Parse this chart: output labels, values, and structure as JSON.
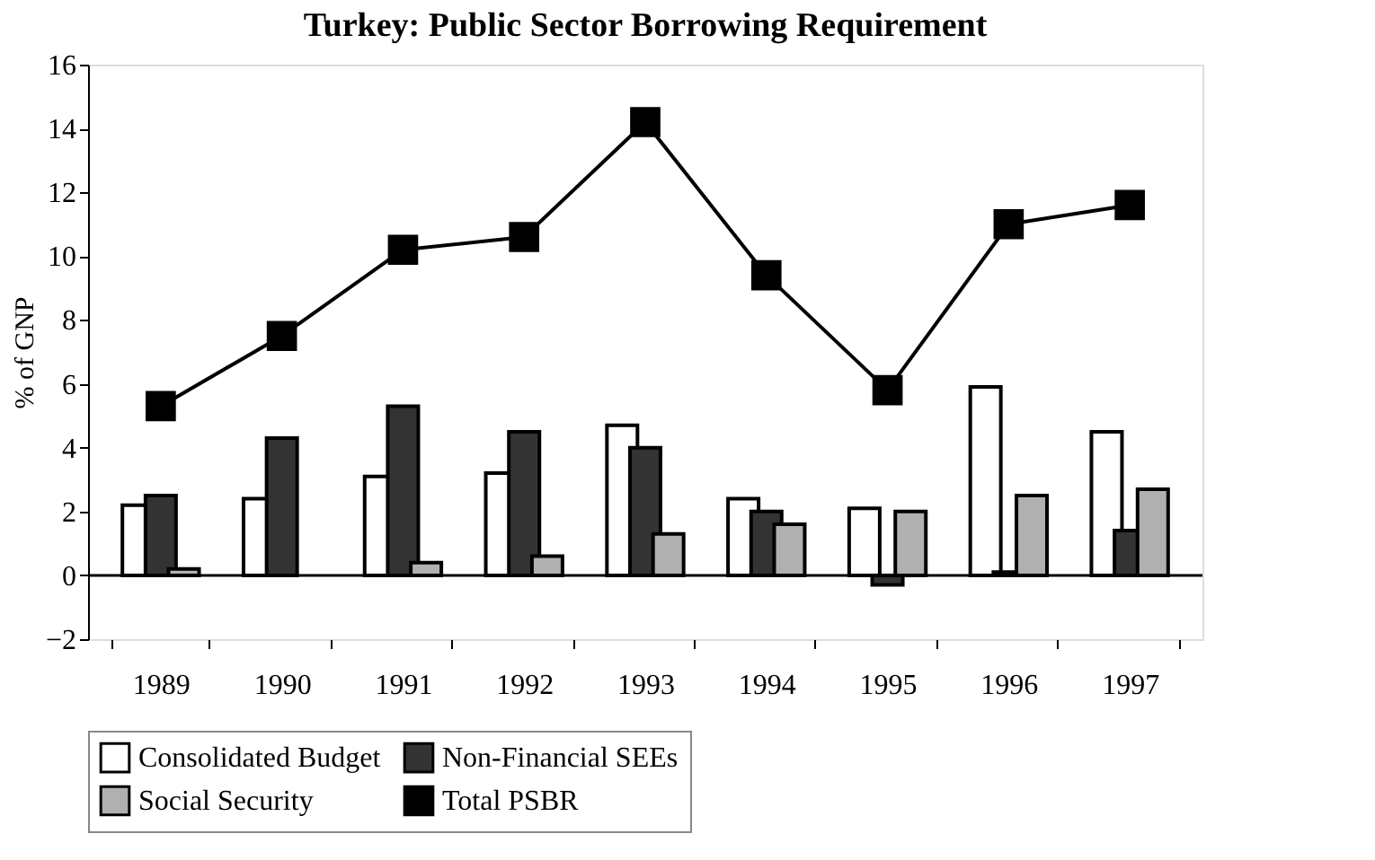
{
  "chart_data": {
    "type": "bar",
    "title": "Turkey: Public Sector Borrowing Requirement",
    "ylabel": "% of GNP",
    "categories": [
      "1989",
      "1990",
      "1991",
      "1992",
      "1993",
      "1994",
      "1995",
      "1996",
      "1997"
    ],
    "series": [
      {
        "name": "Consolidated Budget",
        "color": "#ffffff",
        "values": [
          2.2,
          2.4,
          3.1,
          3.2,
          4.7,
          2.4,
          2.1,
          5.9,
          4.5
        ]
      },
      {
        "name": "Non-Financial SEEs",
        "color": "#333333",
        "values": [
          2.5,
          4.3,
          5.3,
          4.5,
          4.0,
          2.0,
          -0.3,
          0.1,
          1.4
        ]
      },
      {
        "name": "Social Security",
        "color": "#b0b0b0",
        "values": [
          0.2,
          null,
          0.4,
          0.6,
          1.3,
          1.6,
          2.0,
          2.5,
          2.7
        ]
      },
      {
        "name": "Total PSBR",
        "color": "#000000",
        "type": "line",
        "marker": "square",
        "values": [
          5.3,
          7.5,
          10.2,
          10.6,
          14.2,
          9.4,
          5.8,
          11.0,
          11.6
        ]
      }
    ],
    "ylim": [
      -2,
      16
    ],
    "yticks": [
      -2,
      0,
      2,
      4,
      6,
      8,
      10,
      12,
      14,
      16
    ],
    "grid": false,
    "legend": "bottom",
    "ref_lines": [
      {
        "axis": "y",
        "value": 0
      }
    ]
  }
}
